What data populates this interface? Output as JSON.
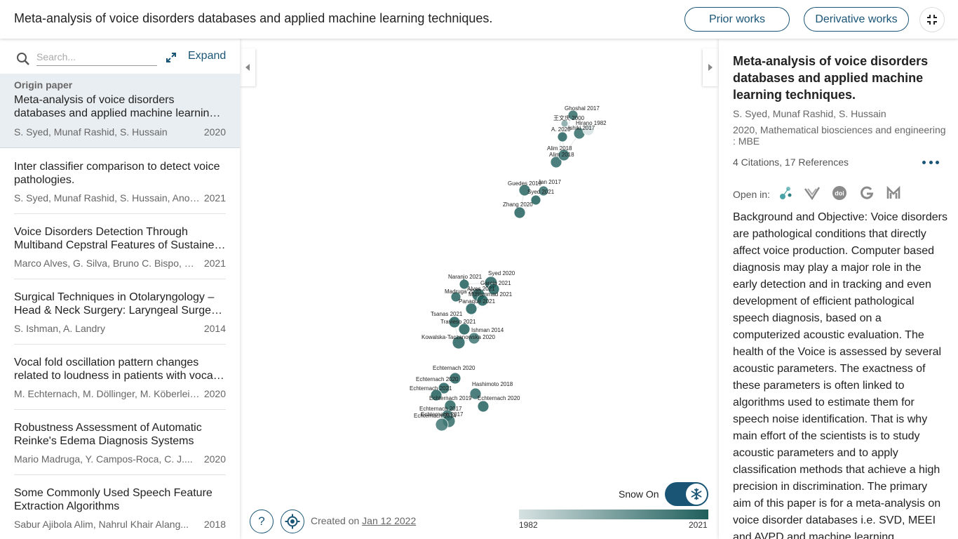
{
  "header": {
    "title": "Meta-analysis of voice disorders databases and applied machine learning techniques.",
    "prior_works": "Prior works",
    "derivative_works": "Derivative works"
  },
  "sidebar": {
    "search_placeholder": "Search...",
    "expand_label": "Expand",
    "origin": {
      "label": "Origin paper",
      "title": "Meta-analysis of voice disorders databases and applied machine learning techniques.",
      "authors": "S. Syed, Munaf Rashid, S. Hussain",
      "year": "2020"
    },
    "papers": [
      {
        "title": "Inter classifier comparison to detect voice pathologies.",
        "authors": "S. Syed, Munaf Rashid, S. Hussain, Anoshi...",
        "year": "2021"
      },
      {
        "title": "Voice Disorders Detection Through Multiband Cepstral Features of Sustained Vowel",
        "authors": "Marco Alves, G. Silva, Bruno C. Bispo, M. E...",
        "year": "2021"
      },
      {
        "title": "Surgical Techniques in Otolaryngology – Head & Neck Surgery: Laryngeal Surgery, Part 1",
        "authors": "S. Ishman, A. Landry",
        "year": "2014"
      },
      {
        "title": "Vocal fold oscillation pattern changes related to loudness in patients with vocal fold mass lesions",
        "authors": "M. Echternach, M. Döllinger, M. Köberlein, ...",
        "year": "2020"
      },
      {
        "title": "Robustness Assessment of Automatic Reinke's Edema Diagnosis Systems",
        "authors": "Mario Madruga, Y. Campos-Roca, C. J....",
        "year": "2020"
      },
      {
        "title": "Some Commonly Used Speech Feature Extraction Algorithms",
        "authors": "Sabur Ajibola Alim, Nahrul Khair Alang...",
        "year": "2018"
      }
    ]
  },
  "graph": {
    "snow_label": "Snow On",
    "created_prefix": "Created on",
    "created_date": "Jan 12 2022",
    "year_min": "1982",
    "year_max": "2021",
    "colors": {
      "old": "#d7e2e2",
      "new": "#1f5f5c"
    },
    "nodes": [
      {
        "label": "Ghoshal 2017",
        "year": 2017
      },
      {
        "label": "王文庆 2000",
        "year": 2000
      },
      {
        "label": "Ishiki 2017",
        "year": 2017
      },
      {
        "label": "Hirano 1982",
        "year": 1982
      },
      {
        "label": "A. 2020",
        "year": 2020
      },
      {
        "label": "Alim 2018",
        "year": 2018
      },
      {
        "label": "Alim 2018",
        "year": 2018
      },
      {
        "label": "Guedes 2019",
        "year": 2019
      },
      {
        "label": "Jan 2017",
        "year": 2017
      },
      {
        "label": "Syed 2021",
        "year": 2021
      },
      {
        "label": "Zhang 2020",
        "year": 2020
      },
      {
        "label": "Naranjo 2021",
        "year": 2021
      },
      {
        "label": "Syed 2020",
        "year": 2020
      },
      {
        "label": "Garcia 2021",
        "year": 2021
      },
      {
        "label": "Madruga 2020",
        "year": 2020
      },
      {
        "label": "Alves 2021",
        "year": 2021
      },
      {
        "label": "Muhammad 2021",
        "year": 2021
      },
      {
        "label": "Panaque 2021",
        "year": 2021
      },
      {
        "label": "Tsanas 2021",
        "year": 2021
      },
      {
        "label": "Travieso 2021",
        "year": 2021
      },
      {
        "label": "Ishman 2014",
        "year": 2014
      },
      {
        "label": "Kowalska-Taczanowska 2020",
        "year": 2020
      },
      {
        "label": "Echternach 2020",
        "year": 2020
      },
      {
        "label": "Echternach 2020",
        "year": 2020
      },
      {
        "label": "Hashimoto 2018",
        "year": 2018
      },
      {
        "label": "Echternach 2021",
        "year": 2021
      },
      {
        "label": "Echternach 2020",
        "year": 2020
      },
      {
        "label": "Echternach 2019",
        "year": 2019
      },
      {
        "label": "Echternach 2017",
        "year": 2017
      },
      {
        "label": "Echternach 2017",
        "year": 2017
      },
      {
        "label": "Echternach 2014",
        "year": 2014
      }
    ]
  },
  "detail": {
    "title": "Meta-analysis of voice disorders databases and applied machine learning techniques.",
    "authors": "S. Syed, Munaf Rashid, S. Hussain",
    "venue": "2020, Mathematical biosciences and engineering : MBE",
    "citations": "4 Citations, 17 References",
    "open_in": "Open in:",
    "abstract": "Background and Objective: Voice disorders are pathological conditions that directly affect voice production. Computer based diagnosis may play a major role in the early detection and in tracking and even development of efficient pathological speech diagnosis, based on a computerized acoustic evaluation. The health of the Voice is assessed by several acoustic parameters. The exactness of these parameters is often linked to algorithms used to estimate them for speech noise identification. That is why main effort of the scientists is to study acoustic parameters and to apply classification methods that achieve a high precision in discrimination. The primary aim of this paper is for a meta-analysis on voice disorder databases i.e. SVD, MEEI and AVPD and machine learning"
  }
}
